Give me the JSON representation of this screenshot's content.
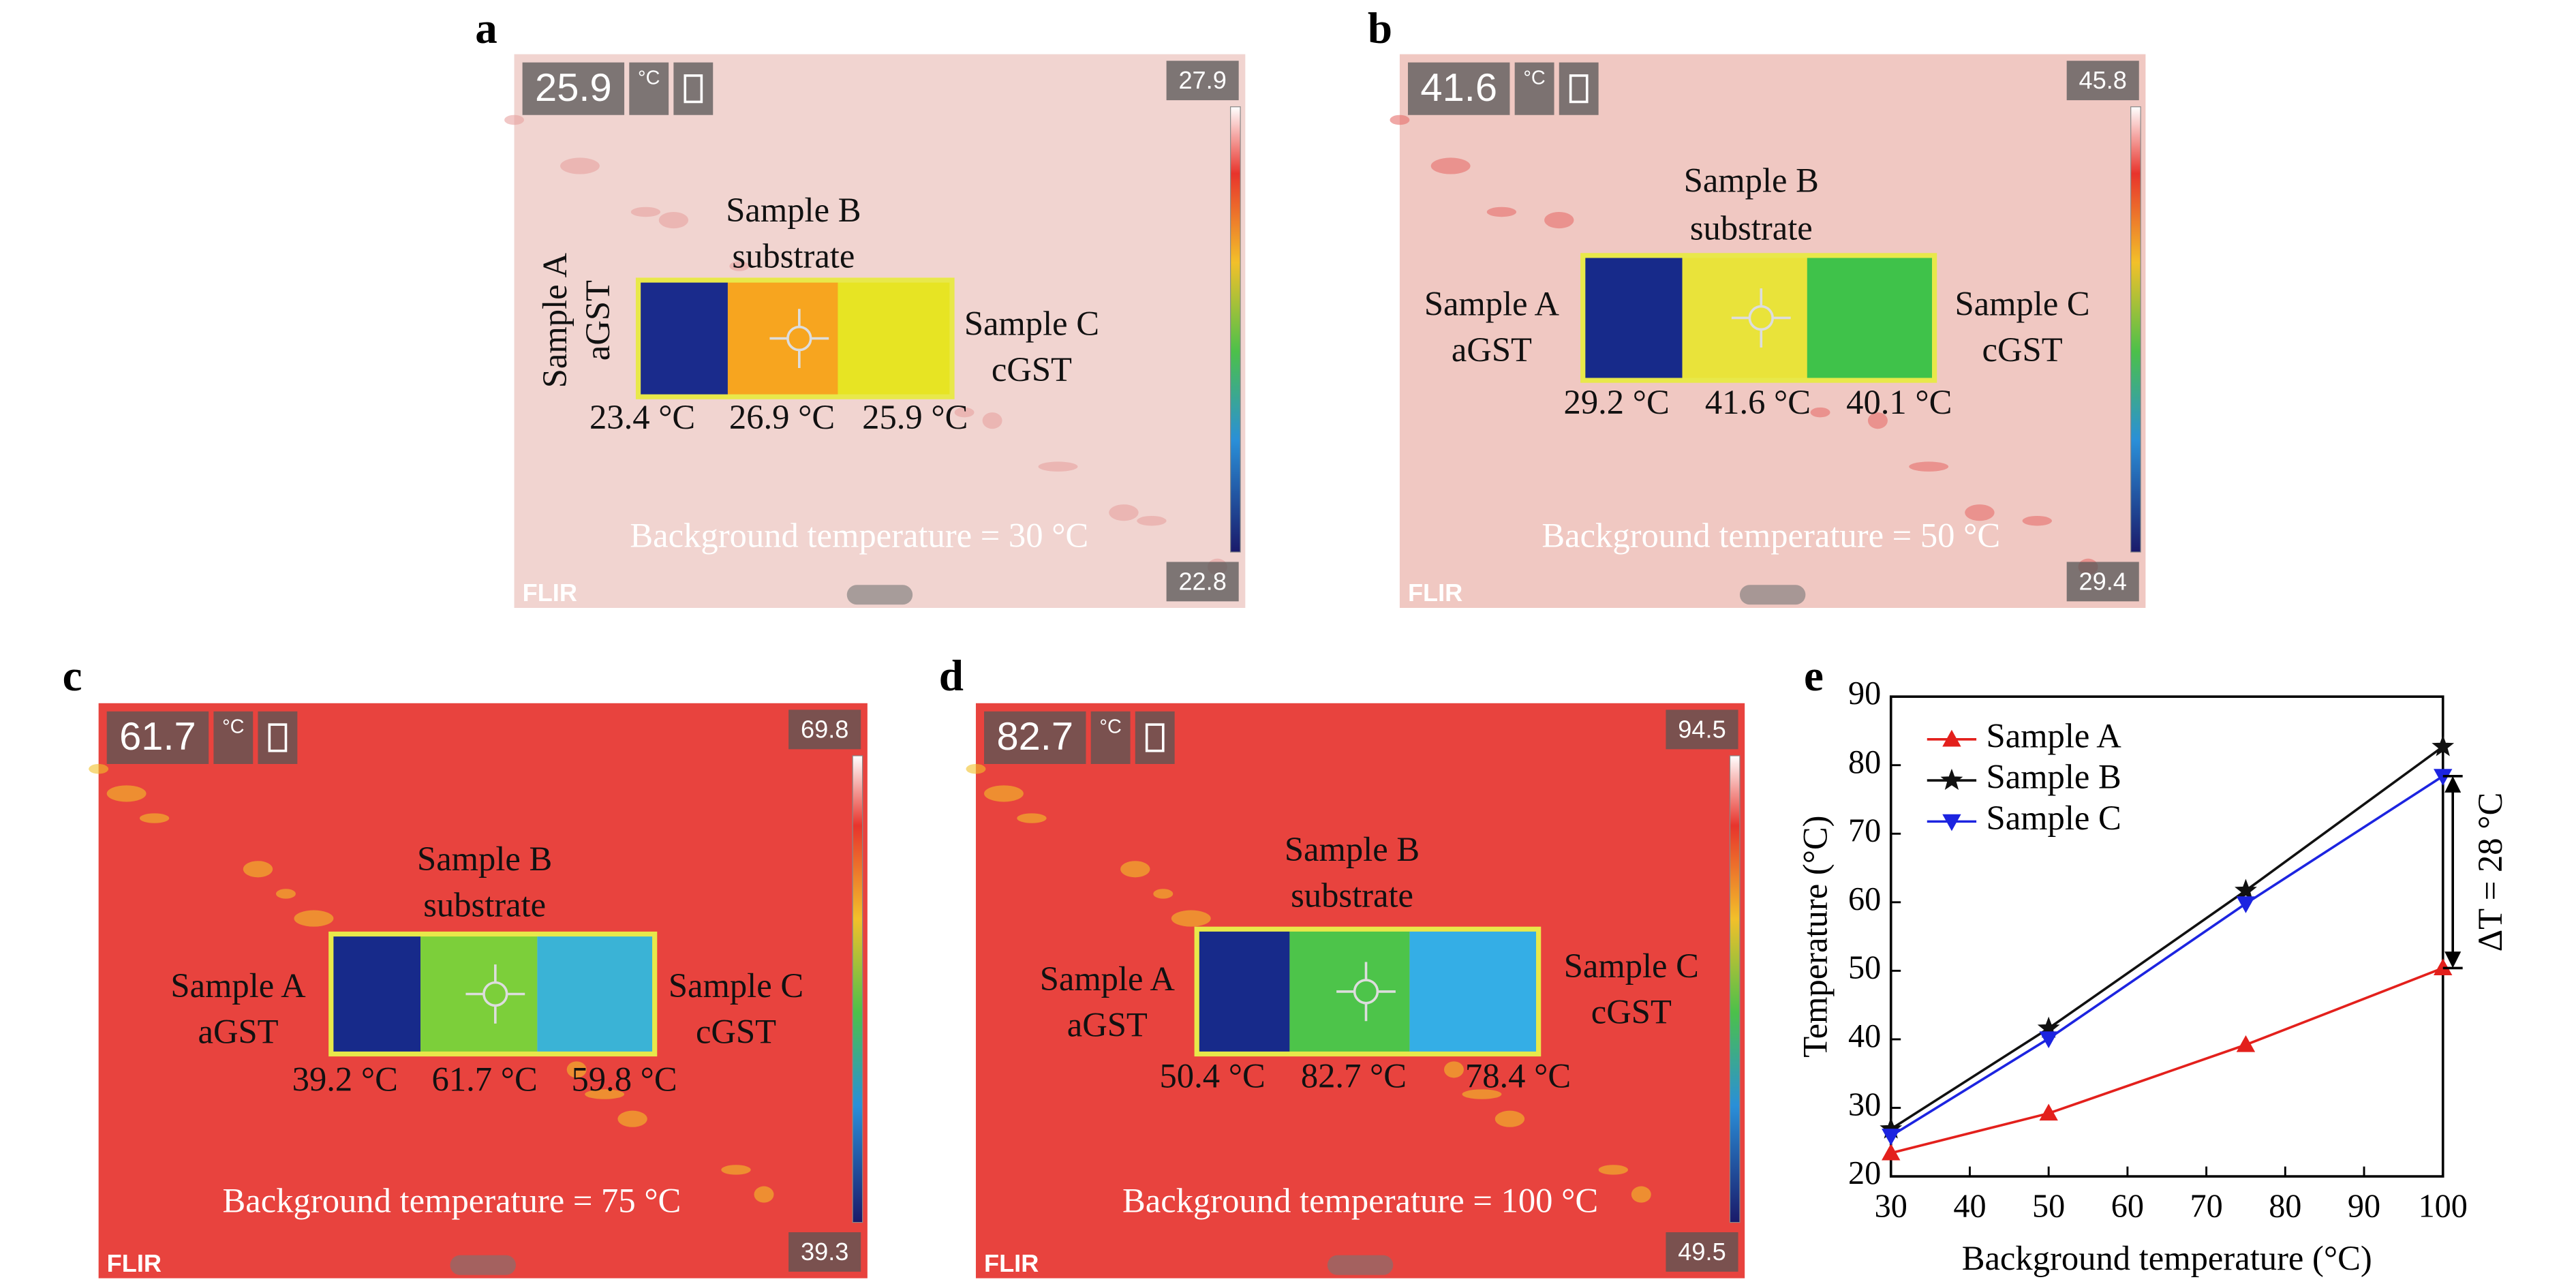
{
  "thermal_panels": [
    {
      "letter": "a",
      "reading": "25.9",
      "unit": "°C",
      "scale_max": "27.9",
      "scale_min": "22.8",
      "logo": "FLIR",
      "samples": [
        {
          "name": "Sample A",
          "material": "aGST",
          "temperature": "23.4 °C"
        },
        {
          "name": "Sample B",
          "material": "substrate",
          "temperature": "26.9 °C"
        },
        {
          "name": "Sample C",
          "material": "cGST",
          "temperature": "25.9 °C"
        }
      ],
      "background_label": "Background temperature = 30 °C"
    },
    {
      "letter": "b",
      "reading": "41.6",
      "unit": "°C",
      "scale_max": "45.8",
      "scale_min": "29.4",
      "logo": "FLIR",
      "samples": [
        {
          "name": "Sample A",
          "material": "aGST",
          "temperature": "29.2 °C"
        },
        {
          "name": "Sample B",
          "material": "substrate",
          "temperature": "41.6 °C"
        },
        {
          "name": "Sample C",
          "material": "cGST",
          "temperature": "40.1 °C"
        }
      ],
      "background_label": "Background temperature = 50 °C"
    },
    {
      "letter": "c",
      "reading": "61.7",
      "unit": "°C",
      "scale_max": "69.8",
      "scale_min": "39.3",
      "logo": "FLIR",
      "samples": [
        {
          "name": "Sample A",
          "material": "aGST",
          "temperature": "39.2 °C"
        },
        {
          "name": "Sample B",
          "material": "substrate",
          "temperature": "61.7 °C"
        },
        {
          "name": "Sample C",
          "material": "cGST",
          "temperature": "59.8 °C"
        }
      ],
      "background_label": "Background temperature = 75 °C"
    },
    {
      "letter": "d",
      "reading": "82.7",
      "unit": "°C",
      "scale_max": "94.5",
      "scale_min": "49.5",
      "logo": "FLIR",
      "samples": [
        {
          "name": "Sample A",
          "material": "aGST",
          "temperature": "50.4 °C"
        },
        {
          "name": "Sample B",
          "material": "substrate",
          "temperature": "82.7 °C"
        },
        {
          "name": "Sample C",
          "material": "cGST",
          "temperature": "78.4 °C"
        }
      ],
      "background_label": "Background temperature = 100 °C"
    }
  ],
  "chart_data": {
    "type": "line",
    "panel_label": "e",
    "x_label": "Background temperature (°C)",
    "y_label": "Temperature (°C)",
    "x": [
      30,
      50,
      75,
      100
    ],
    "series": [
      {
        "name": "Sample A",
        "color": "#e3201c",
        "marker": "triangle-up",
        "values": [
          23.4,
          29.2,
          39.2,
          50.4
        ]
      },
      {
        "name": "Sample B",
        "color": "#111111",
        "marker": "star",
        "values": [
          26.9,
          41.6,
          61.7,
          82.7
        ]
      },
      {
        "name": "Sample C",
        "color": "#1c24e0",
        "marker": "triangle-down",
        "values": [
          25.9,
          40.1,
          59.8,
          78.4
        ]
      }
    ],
    "xlim": [
      30,
      100
    ],
    "xticks": [
      30,
      40,
      50,
      60,
      70,
      80,
      90,
      100
    ],
    "ylim": [
      20,
      90
    ],
    "yticks": [
      20,
      30,
      40,
      50,
      60,
      70,
      80,
      90
    ],
    "legend": "upper left",
    "grid": false,
    "annotation": "ΔT = 28 °C"
  }
}
